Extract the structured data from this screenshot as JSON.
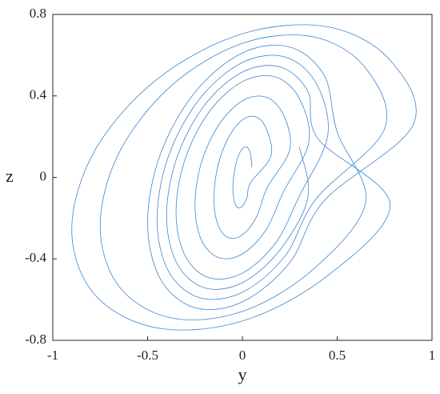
{
  "chart_data": {
    "type": "line",
    "x_label": "y",
    "y_label": "z",
    "xlim": [
      -1,
      1
    ],
    "ylim": [
      -0.8,
      0.8
    ],
    "xticks": [
      -1,
      -0.5,
      0,
      0.5,
      1
    ],
    "yticks": [
      -0.8,
      -0.4,
      0,
      0.4,
      0.8
    ],
    "series": [
      {
        "color": "#3a86d0",
        "x": [
          0.05,
          0.043,
          0.025,
          0,
          -0.025,
          -0.043,
          -0.05,
          -0.043,
          -0.025,
          0,
          0.025,
          0.043,
          0.15,
          0.13,
          0.075,
          0,
          -0.075,
          -0.13,
          -0.15,
          -0.13,
          -0.075,
          0,
          0.075,
          0.13,
          0.25,
          0.217,
          0.125,
          0,
          -0.125,
          -0.217,
          -0.25,
          -0.217,
          -0.125,
          0,
          0.125,
          0.217,
          0.35,
          0.303,
          0.175,
          0,
          -0.175,
          -0.303,
          -0.35,
          -0.303,
          -0.175,
          0,
          0.175,
          0.303,
          0.45,
          0.39,
          0.225,
          0,
          -0.225,
          -0.39,
          -0.45,
          -0.39,
          -0.225,
          0,
          0.225,
          0.39,
          0.75,
          0.65,
          0.375,
          0,
          -0.375,
          -0.65,
          -0.75,
          -0.65,
          -0.375,
          0,
          0.375,
          0.65,
          0.5,
          0.433,
          0.25,
          0,
          -0.25,
          -0.433,
          -0.5,
          -0.433,
          -0.25,
          0,
          0.25,
          0.433,
          0.9,
          0.779,
          0.45,
          0,
          -0.45,
          -0.779,
          -0.9,
          -0.779,
          -0.45,
          0,
          0.45,
          0.779,
          0.4,
          0.346,
          0.2,
          0,
          -0.2,
          -0.346,
          -0.4,
          -0.346,
          -0.2,
          0,
          0.2,
          0.346,
          0.3
        ],
        "values": [
          0.051,
          0.115,
          0.148,
          0.141,
          0.096,
          0.026,
          -0.051,
          -0.115,
          -0.148,
          -0.141,
          -0.096,
          -0.026,
          0.103,
          0.23,
          0.296,
          0.282,
          0.193,
          0.052,
          -0.103,
          -0.23,
          -0.296,
          -0.282,
          -0.193,
          -0.052,
          0.137,
          0.306,
          0.394,
          0.376,
          0.257,
          0.07,
          -0.137,
          -0.306,
          -0.394,
          -0.376,
          -0.257,
          -0.07,
          0.171,
          0.383,
          0.493,
          0.47,
          0.322,
          0.087,
          -0.171,
          -0.383,
          -0.493,
          -0.47,
          -0.322,
          -0.087,
          0.205,
          0.46,
          0.591,
          0.564,
          0.386,
          0.104,
          -0.205,
          -0.46,
          -0.591,
          -0.564,
          -0.386,
          -0.104,
          0.239,
          0.536,
          0.69,
          0.658,
          0.45,
          0.122,
          -0.239,
          -0.536,
          -0.69,
          -0.658,
          -0.45,
          -0.122,
          0.222,
          0.498,
          0.64,
          0.611,
          0.418,
          0.113,
          -0.222,
          -0.498,
          -0.64,
          -0.611,
          -0.418,
          -0.113,
          0.257,
          0.575,
          0.739,
          0.705,
          0.482,
          0.131,
          -0.257,
          -0.575,
          -0.739,
          -0.705,
          -0.482,
          -0.131,
          0.188,
          0.421,
          0.542,
          0.517,
          0.354,
          0.096,
          -0.188,
          -0.421,
          -0.542,
          -0.517,
          -0.354,
          -0.096,
          0.15
        ]
      }
    ]
  }
}
